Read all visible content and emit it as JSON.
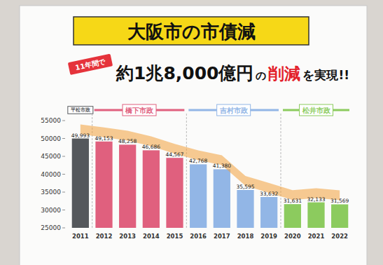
{
  "chart_data": {
    "type": "bar",
    "title": "大阪市の市債減",
    "subtitle": [
      "11年間で",
      "約1兆8,000億円",
      "の",
      "削減",
      "を実現!!"
    ],
    "annotations": [
      "平松市政",
      "橋下市政",
      "吉村市政",
      "松井市政"
    ],
    "categories": [
      "2011",
      "2012",
      "2013",
      "2014",
      "2015",
      "2016",
      "2017",
      "2018",
      "2019",
      "2020",
      "2021",
      "2022"
    ],
    "values": [
      49993,
      49153,
      48258,
      46686,
      44567,
      42768,
      41380,
      35595,
      33632,
      31631,
      32133,
      31569
    ],
    "value_labels": [
      "49,993",
      "49,153",
      "48,258",
      "46,686",
      "44,567",
      "42,768",
      "41,380",
      "35,595",
      "33,632",
      "31,631",
      "32,133",
      "31,569"
    ],
    "colors": [
      "#55585c",
      "#e0607e",
      "#e0607e",
      "#e0607e",
      "#e0607e",
      "#92b6e6",
      "#92b6e6",
      "#92b6e6",
      "#92b6e6",
      "#8ccb5e",
      "#8ccb5e",
      "#8ccb5e"
    ],
    "ylim": [
      25000,
      55000
    ],
    "yticks": [
      25000,
      30000,
      35000,
      40000,
      45000,
      50000,
      55000
    ],
    "grid": false,
    "data_labels": true
  }
}
